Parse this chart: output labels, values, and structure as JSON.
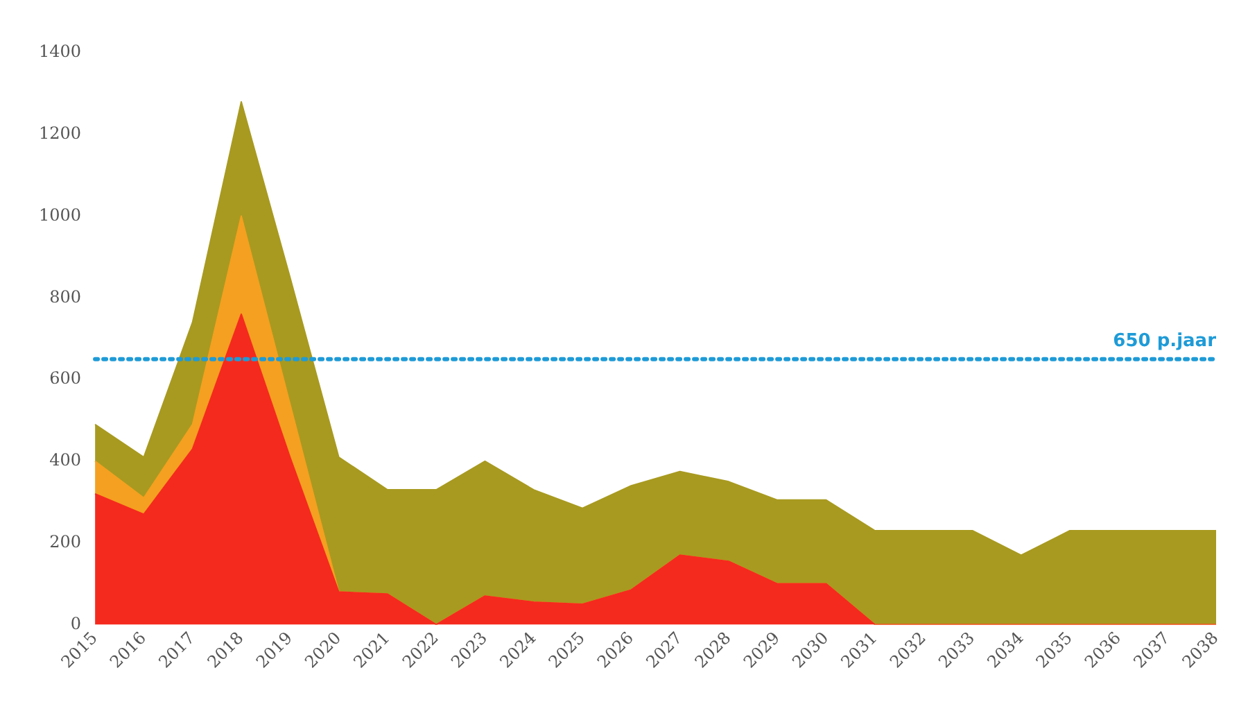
{
  "chart_data": {
    "type": "area",
    "stacked": true,
    "categories": [
      "2015",
      "2016",
      "2017",
      "2018",
      "2019",
      "2020",
      "2021",
      "2022",
      "2023",
      "2024",
      "2025",
      "2026",
      "2027",
      "2028",
      "2029",
      "2030",
      "2031",
      "2032",
      "2033",
      "2034",
      "2035",
      "2036",
      "2037",
      "2038"
    ],
    "series": [
      {
        "color": "#f52a1e",
        "values": [
          320,
          270,
          430,
          760,
          410,
          80,
          75,
          0,
          70,
          55,
          50,
          85,
          170,
          155,
          100,
          100,
          0,
          0,
          0,
          0,
          0,
          0,
          0,
          0
        ]
      },
      {
        "color": "#f5a020",
        "values": [
          80,
          40,
          60,
          240,
          130,
          0,
          0,
          0,
          0,
          0,
          0,
          0,
          0,
          0,
          0,
          0,
          0,
          0,
          0,
          0,
          0,
          0,
          0,
          0
        ]
      },
      {
        "color": "#a89a20",
        "values": [
          90,
          100,
          250,
          280,
          310,
          330,
          255,
          330,
          330,
          275,
          235,
          255,
          205,
          195,
          205,
          205,
          230,
          230,
          230,
          170,
          230,
          230,
          230,
          230
        ]
      }
    ],
    "ylim": [
      0,
      1400
    ],
    "yticks": [
      0,
      200,
      400,
      600,
      800,
      1000,
      1200,
      1400
    ],
    "grid": false,
    "legend": false,
    "ref_lines": [
      {
        "axis": "y",
        "value": 650,
        "label": "650 p.jaar",
        "color": "#1e9bd7",
        "line_style": "dotted"
      }
    ]
  }
}
